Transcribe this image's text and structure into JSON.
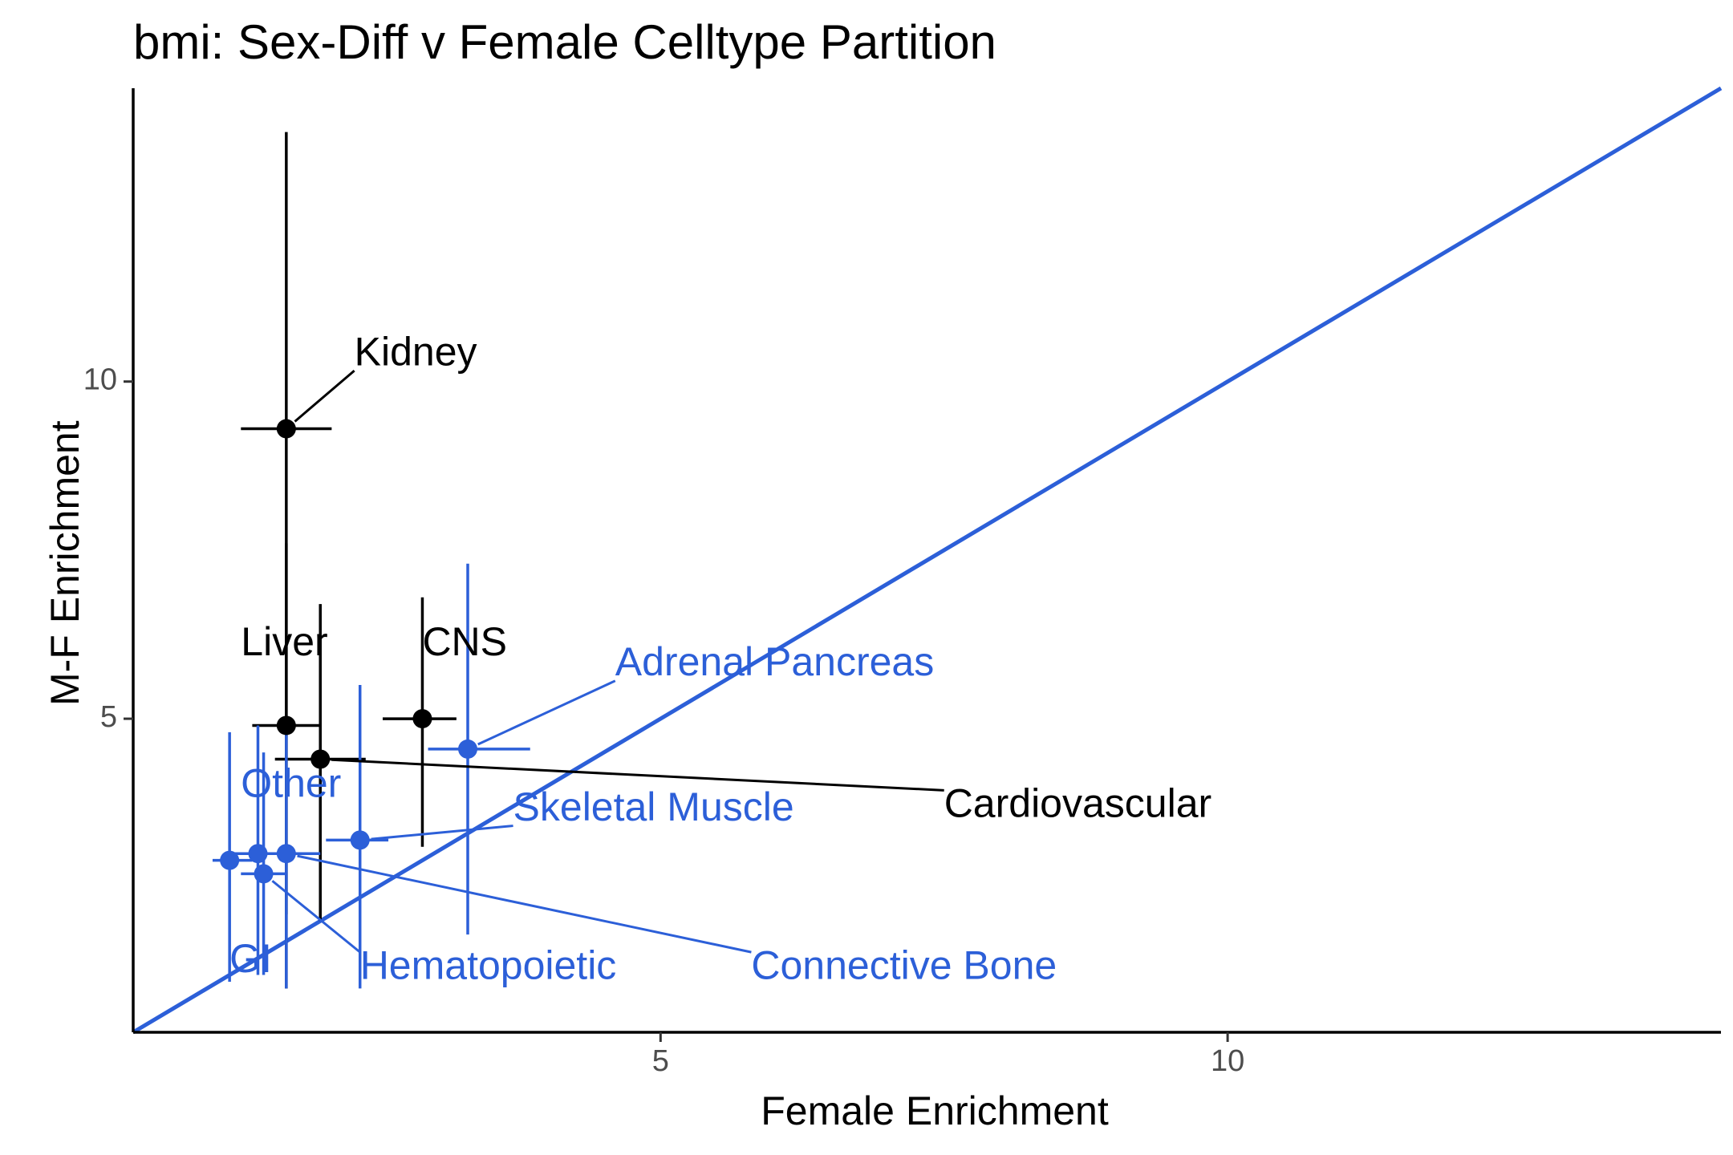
{
  "chart_data": {
    "type": "scatter",
    "title": "bmi: Sex-Diff v Female Celltype Partition",
    "xlabel": "Female Enrichment",
    "ylabel": "M-F Enrichment",
    "xlim": [
      0.35,
      14.35
    ],
    "ylim": [
      0.35,
      14.35
    ],
    "x_ticks": [
      5,
      10
    ],
    "y_ticks": [
      5,
      10
    ],
    "reference_line": {
      "type": "identity",
      "slope": 1,
      "intercept": 0,
      "color": "#2c5fd8"
    },
    "grid": false,
    "colors": {
      "black_group": "#000000",
      "blue_group": "#2c5fd8"
    },
    "points": [
      {
        "label": "Kidney",
        "x": 1.7,
        "y": 9.3,
        "xmin": 1.3,
        "xmax": 2.1,
        "ymin": 1.0,
        "ymax": 13.7,
        "color": "#000000",
        "label_x": 2.3,
        "label_y": 10.4
      },
      {
        "label": "Liver",
        "x": 1.7,
        "y": 4.9,
        "xmin": 1.4,
        "xmax": 2.0,
        "ymin": 2.1,
        "ymax": 7.6,
        "color": "#000000",
        "label_x": 1.3,
        "label_y": 6.1
      },
      {
        "label": "CNS",
        "x": 2.9,
        "y": 5.0,
        "xmin": 2.55,
        "xmax": 3.2,
        "ymin": 3.1,
        "ymax": 6.8,
        "color": "#000000",
        "label_x": 2.9,
        "label_y": 6.1
      },
      {
        "label": "Cardiovascular",
        "x": 2.0,
        "y": 4.4,
        "xmin": 1.6,
        "xmax": 2.4,
        "ymin": 2.0,
        "ymax": 6.7,
        "color": "#000000",
        "label_x": 7.5,
        "label_y": 3.7
      },
      {
        "label": "Adrenal Pancreas",
        "x": 3.3,
        "y": 4.55,
        "xmin": 2.95,
        "xmax": 3.85,
        "ymin": 1.8,
        "ymax": 7.3,
        "color": "#2c5fd8",
        "label_x": 4.6,
        "label_y": 5.8
      },
      {
        "label": "Skeletal Muscle",
        "x": 2.35,
        "y": 3.2,
        "xmin": 2.05,
        "xmax": 2.6,
        "ymin": 1.0,
        "ymax": 5.5,
        "color": "#2c5fd8",
        "label_x": 3.7,
        "label_y": 3.65
      },
      {
        "label": "Other",
        "x": 1.45,
        "y": 3.0,
        "xmin": 1.2,
        "xmax": 1.75,
        "ymin": 1.2,
        "ymax": 4.9,
        "color": "#2c5fd8",
        "label_x": 1.3,
        "label_y": 4.0
      },
      {
        "label": "GI",
        "x": 1.2,
        "y": 2.9,
        "xmin": 1.05,
        "xmax": 1.4,
        "ymin": 1.1,
        "ymax": 4.8,
        "color": "#2c5fd8",
        "label_x": 1.2,
        "label_y": 1.4
      },
      {
        "label": "Hematopoietic",
        "x": 1.5,
        "y": 2.7,
        "xmin": 1.3,
        "xmax": 1.7,
        "ymin": 1.2,
        "ymax": 4.5,
        "color": "#2c5fd8",
        "label_x": 2.35,
        "label_y": 1.3
      },
      {
        "label": "Connective Bone",
        "x": 1.7,
        "y": 3.0,
        "xmin": 1.25,
        "xmax": 2.0,
        "ymin": 1.0,
        "ymax": 4.9,
        "color": "#2c5fd8",
        "label_x": 5.8,
        "label_y": 1.3
      }
    ]
  }
}
